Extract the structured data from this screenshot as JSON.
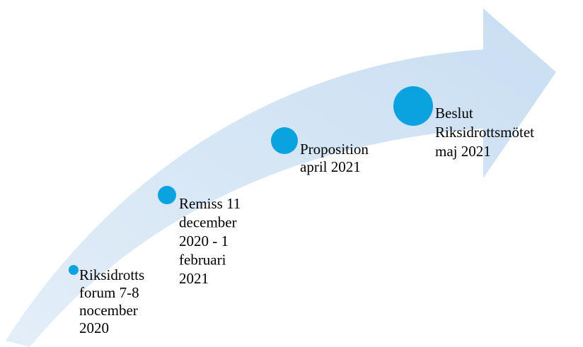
{
  "nodes": [
    {
      "label": [
        "Riksidrotts",
        "forum 7-8",
        "nocember",
        "2020"
      ]
    },
    {
      "label": [
        "Remiss 11",
        "december",
        "2020 - 1",
        "februari",
        "2021"
      ]
    },
    {
      "label": [
        "Proposition",
        "april 2021"
      ]
    },
    {
      "label": [
        "Beslut",
        "Riksidrottsmötet",
        "maj 2021"
      ]
    }
  ]
}
